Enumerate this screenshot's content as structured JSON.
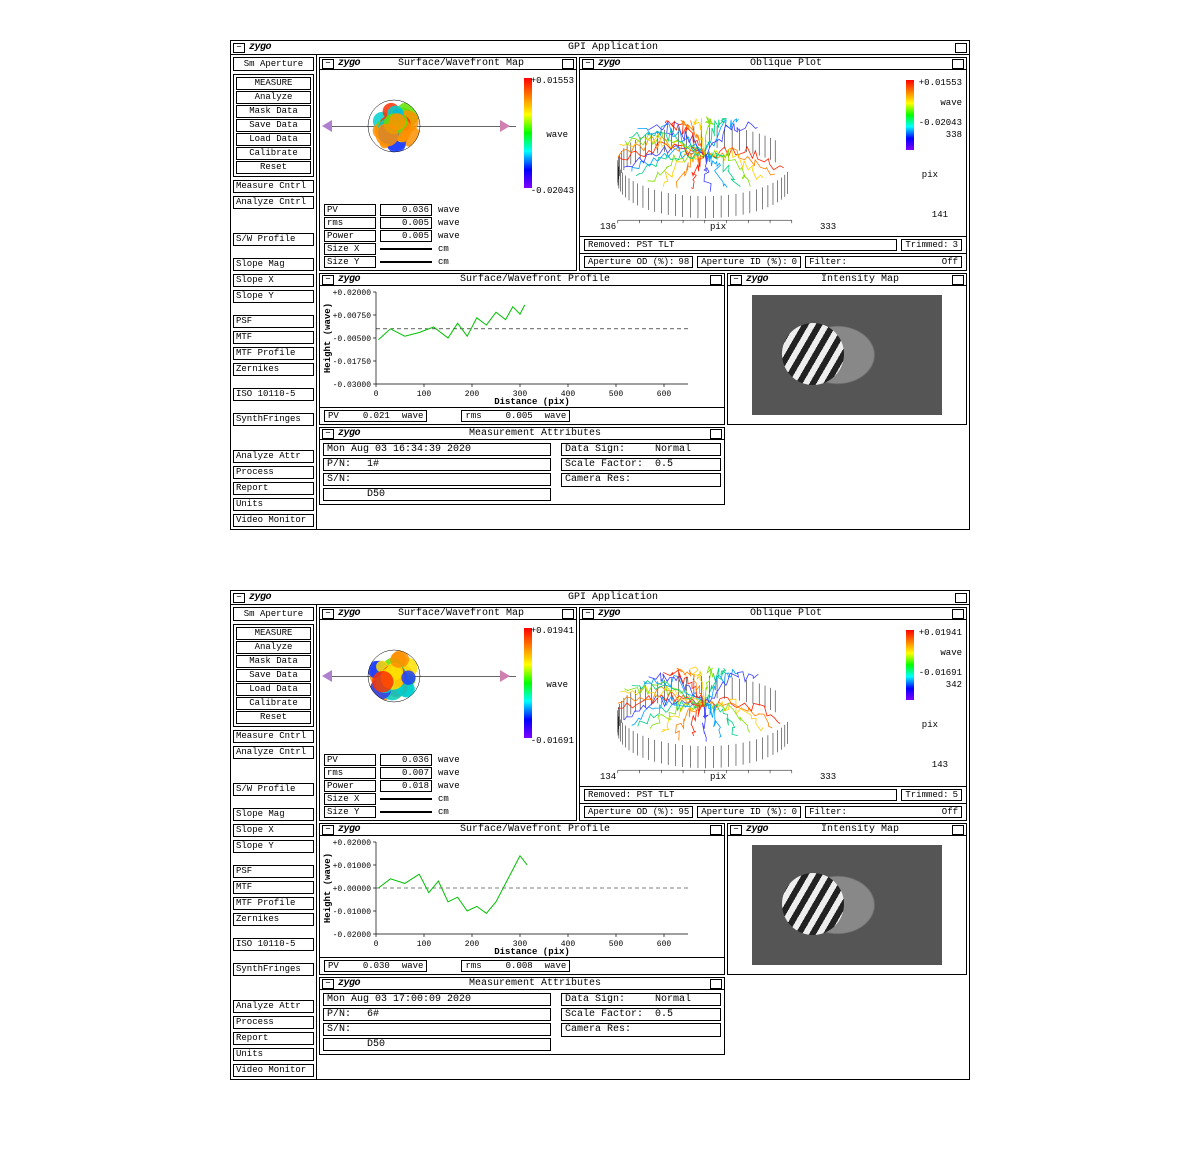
{
  "apps": [
    {
      "app_title": "GPI Application",
      "brand": "zygo",
      "sidebar": {
        "title": "Sm Aperture",
        "main_buttons": [
          "MEASURE",
          "Analyze",
          "Mask Data",
          "Save Data",
          "Load Data",
          "Calibrate",
          "Reset"
        ],
        "items_a": [
          "Measure Cntrl",
          "Analyze Cntrl"
        ],
        "items_b": [
          "S/W Profile"
        ],
        "items_c": [
          "Slope Mag",
          "Slope X",
          "Slope Y"
        ],
        "items_d": [
          "PSF",
          "MTF",
          "MTF Profile",
          "Zernikes"
        ],
        "items_e": [
          "ISO 10110-5"
        ],
        "items_f": [
          "SynthFringes"
        ],
        "items_g": [
          "Analyze Attr",
          "Process",
          "Report",
          "Units"
        ],
        "items_h": [
          "Video Monitor"
        ]
      },
      "wavefront_map": {
        "title": "Surface/Wavefront Map",
        "colorbar": {
          "max": "+0.01553",
          "min": "-0.02043",
          "label": "wave",
          "colors": [
            "#ff0000",
            "#ff7f00",
            "#ffff00",
            "#00ff00",
            "#00ffff",
            "#0000ff",
            "#8000ff"
          ]
        },
        "stats": [
          {
            "label": "PV",
            "value": "0.036",
            "unit": "wave"
          },
          {
            "label": "rms",
            "value": "0.005",
            "unit": "wave"
          },
          {
            "label": "Power",
            "value": "0.005",
            "unit": "wave"
          },
          {
            "label": "Size X",
            "value": "",
            "unit": "cm"
          },
          {
            "label": "Size Y",
            "value": "",
            "unit": "cm"
          }
        ]
      },
      "oblique": {
        "title": "Oblique Plot",
        "colorbar": {
          "max": "+0.01553",
          "min": "-0.02043",
          "label": "wave",
          "y_top": "338",
          "y_bot": "141",
          "x_left": "136",
          "x_right": "333",
          "axis": "pix"
        },
        "footer": {
          "removed": "Removed: PST TLT",
          "trimmed_label": "Trimmed:",
          "trimmed_val": "3",
          "ap_od_label": "Aperture OD (%):",
          "ap_od_val": "98",
          "ap_id_label": "Aperture ID (%):",
          "ap_id_val": "0",
          "filter_label": "Filter:",
          "filter_val": "Off"
        }
      },
      "profile": {
        "title": "Surface/Wavefront Profile",
        "ylabel": "Height (wave)",
        "xlabel": "Distance (pix)",
        "yticks": [
          "+0.02000",
          "+0.00750",
          "-0.00500",
          "-0.01750",
          "-0.03000"
        ],
        "xticks": [
          "0",
          "100",
          "200",
          "300",
          "400",
          "500",
          "600"
        ],
        "xrange": [
          0,
          650
        ],
        "yrange": [
          -0.03,
          0.02
        ],
        "line_color": "#00c000",
        "data": [
          [
            5,
            -0.006
          ],
          [
            30,
            0.0
          ],
          [
            60,
            -0.004
          ],
          [
            90,
            -0.002
          ],
          [
            120,
            0.001
          ],
          [
            150,
            -0.005
          ],
          [
            170,
            0.003
          ],
          [
            190,
            -0.004
          ],
          [
            210,
            0.006
          ],
          [
            230,
            0.002
          ],
          [
            250,
            0.009
          ],
          [
            270,
            0.005
          ],
          [
            285,
            0.012
          ],
          [
            300,
            0.008
          ],
          [
            310,
            0.013
          ]
        ],
        "footer": {
          "pv_label": "PV",
          "pv_val": "0.021",
          "pv_unit": "wave",
          "rms_label": "rms",
          "rms_val": "0.005",
          "rms_unit": "wave"
        }
      },
      "intensity": {
        "title": "Intensity Map"
      },
      "meas_attr": {
        "title": "Measurement Attributes",
        "timestamp": "Mon Aug 03 16:34:39 2020",
        "rows_left": [
          {
            "label": "P/N:",
            "value": "1#"
          },
          {
            "label": "S/N:",
            "value": ""
          },
          {
            "label": "",
            "value": "D50"
          }
        ],
        "rows_right": [
          {
            "label": "Data Sign:",
            "value": "Normal"
          },
          {
            "label": "Scale Factor:",
            "value": "0.5"
          },
          {
            "label": "Camera Res:",
            "value": "਀"
          }
        ]
      }
    },
    {
      "app_title": "GPI Application",
      "brand": "zygo",
      "sidebar": {
        "title": "Sm Aperture",
        "main_buttons": [
          "MEASURE",
          "Analyze",
          "Mask Data",
          "Save Data",
          "Load Data",
          "Calibrate",
          "Reset"
        ],
        "items_a": [
          "Measure Cntrl",
          "Analyze Cntrl"
        ],
        "items_b": [
          "S/W Profile"
        ],
        "items_c": [
          "Slope Mag",
          "Slope X",
          "Slope Y"
        ],
        "items_d": [
          "PSF",
          "MTF",
          "MTF Profile",
          "Zernikes"
        ],
        "items_e": [
          "ISO 10110-5"
        ],
        "items_f": [
          "SynthFringes"
        ],
        "items_g": [
          "Analyze Attr",
          "Process",
          "Report",
          "Units"
        ],
        "items_h": [
          "Video Monitor"
        ]
      },
      "wavefront_map": {
        "title": "Surface/Wavefront Map",
        "colorbar": {
          "max": "+0.01941",
          "min": "-0.01691",
          "label": "wave",
          "colors": [
            "#ff0000",
            "#ff7f00",
            "#ffff00",
            "#00ff00",
            "#00ffff",
            "#0000ff",
            "#8000ff"
          ]
        },
        "stats": [
          {
            "label": "PV",
            "value": "0.036",
            "unit": "wave"
          },
          {
            "label": "rms",
            "value": "0.007",
            "unit": "wave"
          },
          {
            "label": "Power",
            "value": "0.018",
            "unit": "wave"
          },
          {
            "label": "Size X",
            "value": "",
            "unit": "cm"
          },
          {
            "label": "Size Y",
            "value": "",
            "unit": "cm"
          }
        ]
      },
      "oblique": {
        "title": "Oblique Plot",
        "colorbar": {
          "max": "+0.01941",
          "min": "-0.01691",
          "label": "wave",
          "y_top": "342",
          "y_bot": "143",
          "x_left": "134",
          "x_right": "333",
          "axis": "pix"
        },
        "footer": {
          "removed": "Removed: PST TLT",
          "trimmed_label": "Trimmed:",
          "trimmed_val": "5",
          "ap_od_label": "Aperture OD (%):",
          "ap_od_val": "95",
          "ap_id_label": "Aperture ID (%):",
          "ap_id_val": "0",
          "filter_label": "Filter:",
          "filter_val": "Off"
        }
      },
      "profile": {
        "title": "Surface/Wavefront Profile",
        "ylabel": "Height (wave)",
        "xlabel": "Distance (pix)",
        "yticks": [
          "+0.02000",
          "+0.01000",
          "+0.00000",
          "-0.01000",
          "-0.02000"
        ],
        "xticks": [
          "0",
          "100",
          "200",
          "300",
          "400",
          "500",
          "600"
        ],
        "xrange": [
          0,
          650
        ],
        "yrange": [
          -0.02,
          0.02
        ],
        "line_color": "#00c000",
        "data": [
          [
            5,
            0.0
          ],
          [
            30,
            0.004
          ],
          [
            60,
            0.002
          ],
          [
            90,
            0.006
          ],
          [
            110,
            -0.002
          ],
          [
            130,
            0.003
          ],
          [
            150,
            -0.006
          ],
          [
            170,
            -0.004
          ],
          [
            190,
            -0.01
          ],
          [
            210,
            -0.008
          ],
          [
            230,
            -0.011
          ],
          [
            250,
            -0.006
          ],
          [
            270,
            0.002
          ],
          [
            285,
            0.008
          ],
          [
            300,
            0.014
          ],
          [
            315,
            0.01
          ]
        ],
        "footer": {
          "pv_label": "PV",
          "pv_val": "0.030",
          "pv_unit": "wave",
          "rms_label": "rms",
          "rms_val": "0.008",
          "rms_unit": "wave"
        }
      },
      "intensity": {
        "title": "Intensity Map"
      },
      "meas_attr": {
        "title": "Measurement Attributes",
        "timestamp": "Mon Aug 03 17:00:09 2020",
        "rows_left": [
          {
            "label": "P/N:",
            "value": "6#"
          },
          {
            "label": "S/N:",
            "value": ""
          },
          {
            "label": "",
            "value": "D50"
          }
        ],
        "rows_right": [
          {
            "label": "Data Sign:",
            "value": "Normal"
          },
          {
            "label": "Scale Factor:",
            "value": "0.5"
          },
          {
            "label": "Camera Res:",
            "value": "਀"
          }
        ]
      }
    }
  ]
}
